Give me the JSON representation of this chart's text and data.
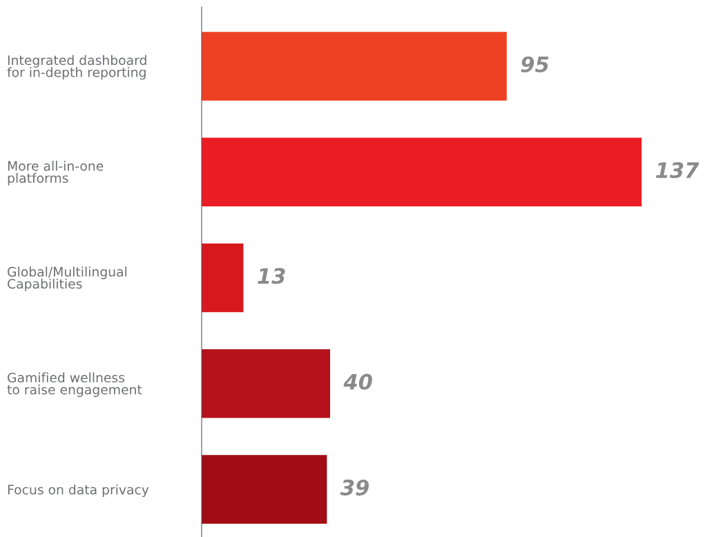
{
  "chart_data": {
    "type": "bar",
    "orientation": "horizontal",
    "categories": [
      "Integrated dashboard\nfor in-depth reporting",
      "More all-in-one\nplatforms",
      "Global/Multilingual\nCapabilities",
      "Gamified wellness\nto raise engagement",
      "Focus on data privacy"
    ],
    "values": [
      95,
      137,
      13,
      40,
      39
    ],
    "colors": [
      "#ee4123",
      "#ec1c24",
      "#d7191f",
      "#b5121b",
      "#a20c14"
    ],
    "data_labels": true,
    "grid": false,
    "legend": false
  }
}
